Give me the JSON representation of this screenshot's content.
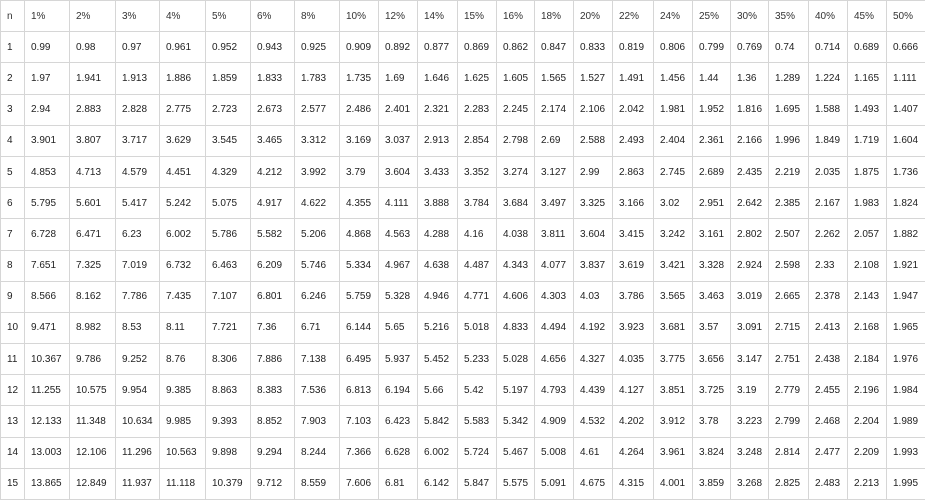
{
  "table": {
    "headers": [
      "n",
      "1%",
      "2%",
      "3%",
      "4%",
      "5%",
      "6%",
      "8%",
      "10%",
      "12%",
      "14%",
      "15%",
      "16%",
      "18%",
      "20%",
      "22%",
      "24%",
      "25%",
      "30%",
      "35%",
      "40%",
      "45%",
      "50%"
    ],
    "rows": [
      [
        "1",
        "0.99",
        "0.98",
        "0.97",
        "0.961",
        "0.952",
        "0.943",
        "0.925",
        "0.909",
        "0.892",
        "0.877",
        "0.869",
        "0.862",
        "0.847",
        "0.833",
        "0.819",
        "0.806",
        "0.799",
        "0.769",
        "0.74",
        "0.714",
        "0.689",
        "0.666"
      ],
      [
        "2",
        "1.97",
        "1.941",
        "1.913",
        "1.886",
        "1.859",
        "1.833",
        "1.783",
        "1.735",
        "1.69",
        "1.646",
        "1.625",
        "1.605",
        "1.565",
        "1.527",
        "1.491",
        "1.456",
        "1.44",
        "1.36",
        "1.289",
        "1.224",
        "1.165",
        "1.111"
      ],
      [
        "3",
        "2.94",
        "2.883",
        "2.828",
        "2.775",
        "2.723",
        "2.673",
        "2.577",
        "2.486",
        "2.401",
        "2.321",
        "2.283",
        "2.245",
        "2.174",
        "2.106",
        "2.042",
        "1.981",
        "1.952",
        "1.816",
        "1.695",
        "1.588",
        "1.493",
        "1.407"
      ],
      [
        "4",
        "3.901",
        "3.807",
        "3.717",
        "3.629",
        "3.545",
        "3.465",
        "3.312",
        "3.169",
        "3.037",
        "2.913",
        "2.854",
        "2.798",
        "2.69",
        "2.588",
        "2.493",
        "2.404",
        "2.361",
        "2.166",
        "1.996",
        "1.849",
        "1.719",
        "1.604"
      ],
      [
        "5",
        "4.853",
        "4.713",
        "4.579",
        "4.451",
        "4.329",
        "4.212",
        "3.992",
        "3.79",
        "3.604",
        "3.433",
        "3.352",
        "3.274",
        "3.127",
        "2.99",
        "2.863",
        "2.745",
        "2.689",
        "2.435",
        "2.219",
        "2.035",
        "1.875",
        "1.736"
      ],
      [
        "6",
        "5.795",
        "5.601",
        "5.417",
        "5.242",
        "5.075",
        "4.917",
        "4.622",
        "4.355",
        "4.111",
        "3.888",
        "3.784",
        "3.684",
        "3.497",
        "3.325",
        "3.166",
        "3.02",
        "2.951",
        "2.642",
        "2.385",
        "2.167",
        "1.983",
        "1.824"
      ],
      [
        "7",
        "6.728",
        "6.471",
        "6.23",
        "6.002",
        "5.786",
        "5.582",
        "5.206",
        "4.868",
        "4.563",
        "4.288",
        "4.16",
        "4.038",
        "3.811",
        "3.604",
        "3.415",
        "3.242",
        "3.161",
        "2.802",
        "2.507",
        "2.262",
        "2.057",
        "1.882"
      ],
      [
        "8",
        "7.651",
        "7.325",
        "7.019",
        "6.732",
        "6.463",
        "6.209",
        "5.746",
        "5.334",
        "4.967",
        "4.638",
        "4.487",
        "4.343",
        "4.077",
        "3.837",
        "3.619",
        "3.421",
        "3.328",
        "2.924",
        "2.598",
        "2.33",
        "2.108",
        "1.921"
      ],
      [
        "9",
        "8.566",
        "8.162",
        "7.786",
        "7.435",
        "7.107",
        "6.801",
        "6.246",
        "5.759",
        "5.328",
        "4.946",
        "4.771",
        "4.606",
        "4.303",
        "4.03",
        "3.786",
        "3.565",
        "3.463",
        "3.019",
        "2.665",
        "2.378",
        "2.143",
        "1.947"
      ],
      [
        "10",
        "9.471",
        "8.982",
        "8.53",
        "8.11",
        "7.721",
        "7.36",
        "6.71",
        "6.144",
        "5.65",
        "5.216",
        "5.018",
        "4.833",
        "4.494",
        "4.192",
        "3.923",
        "3.681",
        "3.57",
        "3.091",
        "2.715",
        "2.413",
        "2.168",
        "1.965"
      ],
      [
        "11",
        "10.367",
        "9.786",
        "9.252",
        "8.76",
        "8.306",
        "7.886",
        "7.138",
        "6.495",
        "5.937",
        "5.452",
        "5.233",
        "5.028",
        "4.656",
        "4.327",
        "4.035",
        "3.775",
        "3.656",
        "3.147",
        "2.751",
        "2.438",
        "2.184",
        "1.976"
      ],
      [
        "12",
        "11.255",
        "10.575",
        "9.954",
        "9.385",
        "8.863",
        "8.383",
        "7.536",
        "6.813",
        "6.194",
        "5.66",
        "5.42",
        "5.197",
        "4.793",
        "4.439",
        "4.127",
        "3.851",
        "3.725",
        "3.19",
        "2.779",
        "2.455",
        "2.196",
        "1.984"
      ],
      [
        "13",
        "12.133",
        "11.348",
        "10.634",
        "9.985",
        "9.393",
        "8.852",
        "7.903",
        "7.103",
        "6.423",
        "5.842",
        "5.583",
        "5.342",
        "4.909",
        "4.532",
        "4.202",
        "3.912",
        "3.78",
        "3.223",
        "2.799",
        "2.468",
        "2.204",
        "1.989"
      ],
      [
        "14",
        "13.003",
        "12.106",
        "11.296",
        "10.563",
        "9.898",
        "9.294",
        "8.244",
        "7.366",
        "6.628",
        "6.002",
        "5.724",
        "5.467",
        "5.008",
        "4.61",
        "4.264",
        "3.961",
        "3.824",
        "3.248",
        "2.814",
        "2.477",
        "2.209",
        "1.993"
      ],
      [
        "15",
        "13.865",
        "12.849",
        "11.937",
        "11.118",
        "10.379",
        "9.712",
        "8.559",
        "7.606",
        "6.81",
        "6.142",
        "5.847",
        "5.575",
        "5.091",
        "4.675",
        "4.315",
        "4.001",
        "3.859",
        "3.268",
        "2.825",
        "2.483",
        "2.213",
        "1.995"
      ]
    ]
  }
}
